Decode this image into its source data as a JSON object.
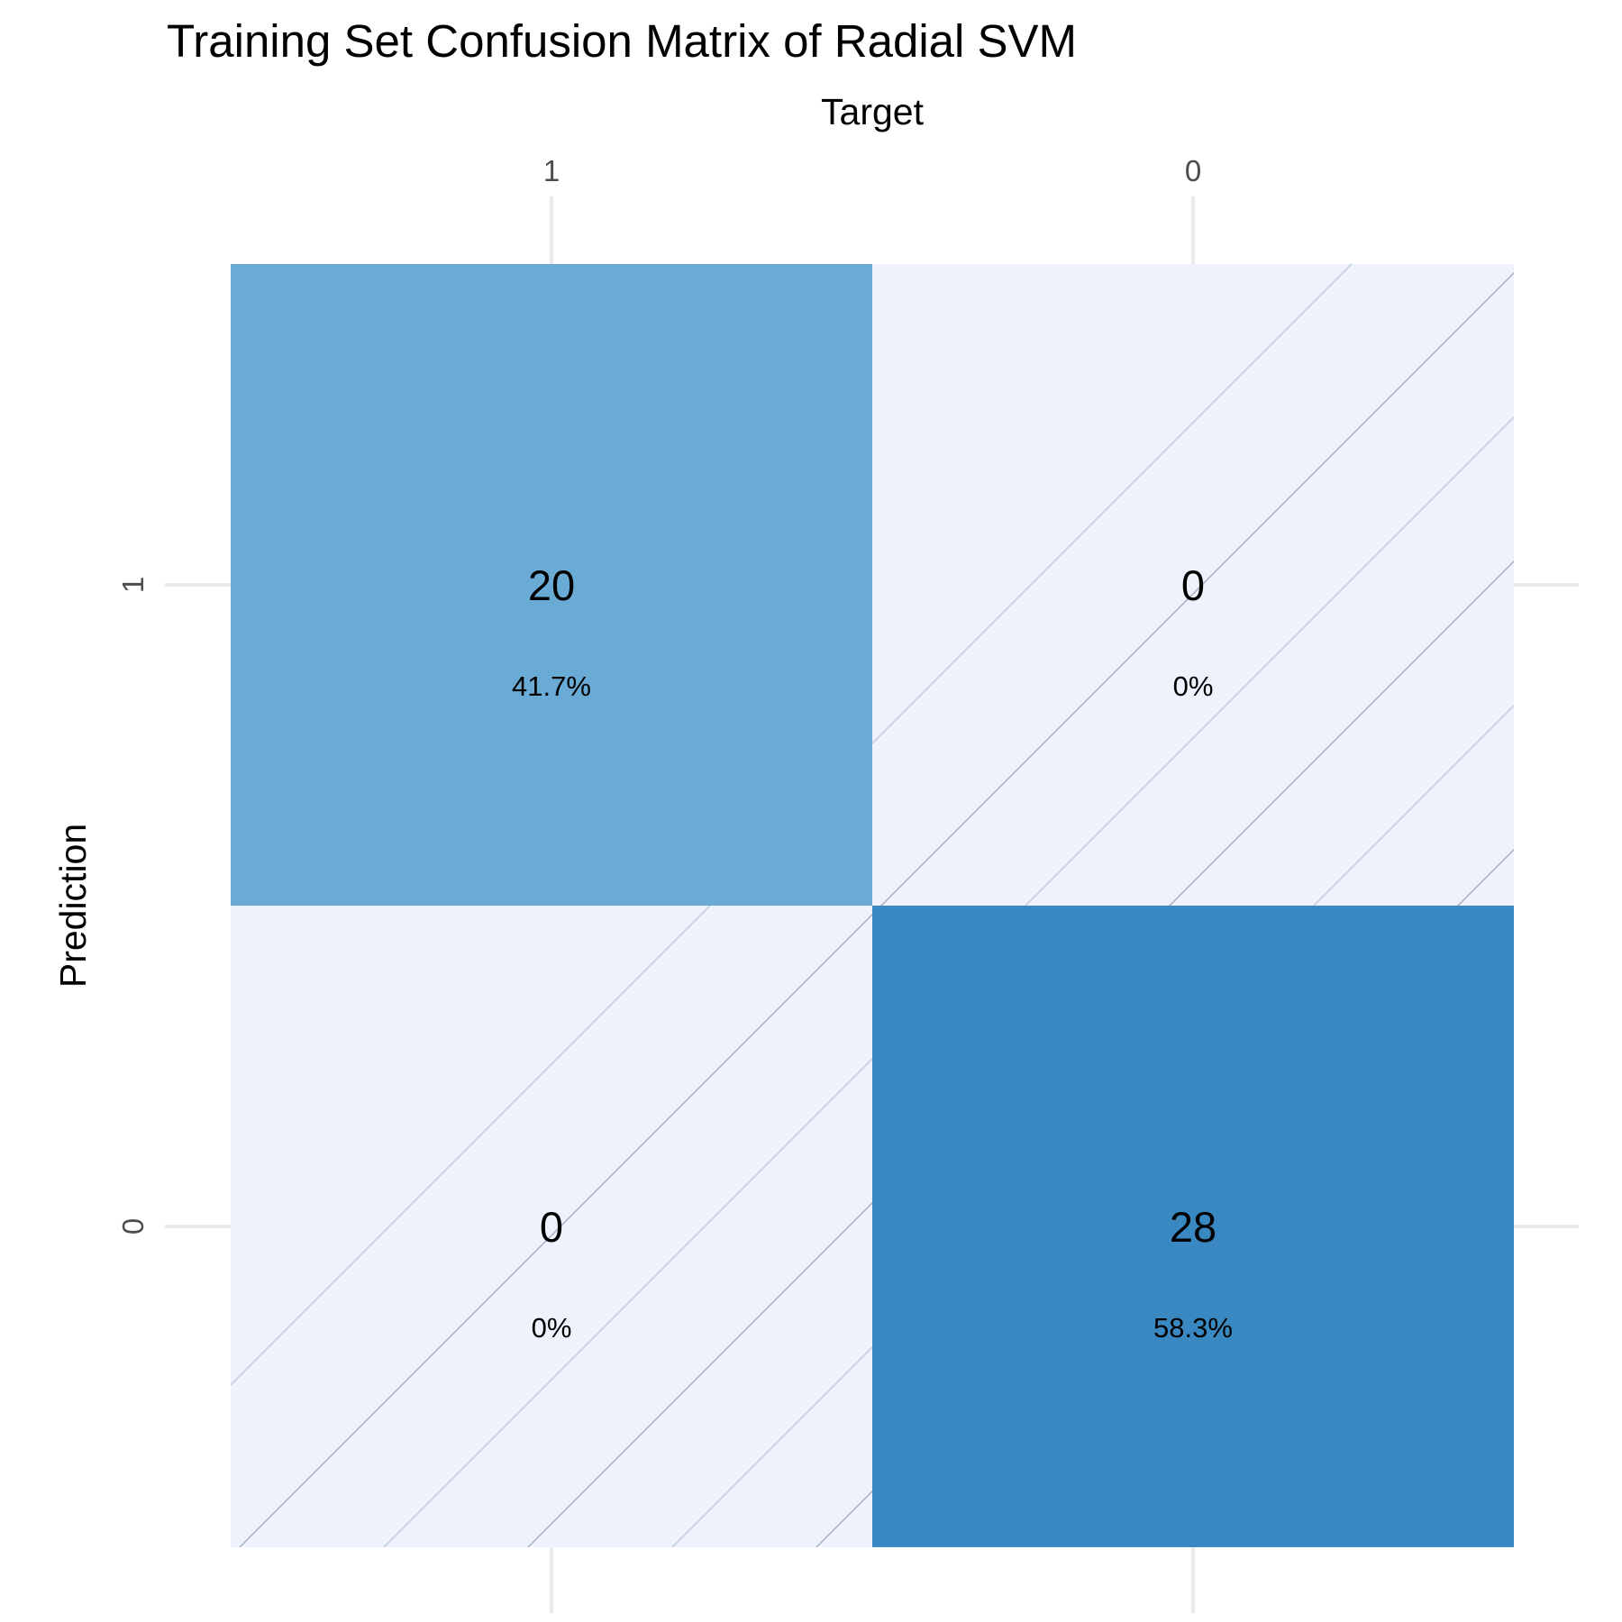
{
  "chart_data": {
    "type": "heatmap",
    "title": "Training Set Confusion Matrix of Radial SVM",
    "xlabel": "Target",
    "ylabel": "Prediction",
    "x_categories": [
      "1",
      "0"
    ],
    "y_categories": [
      "1",
      "0"
    ],
    "cells": [
      {
        "target": "1",
        "prediction": "1",
        "count": "20",
        "percent": "41.7%",
        "color": "#6aabd5"
      },
      {
        "target": "0",
        "prediction": "1",
        "count": "0",
        "percent": "0%",
        "color": "#eef2fc",
        "zero_hatched": true
      },
      {
        "target": "1",
        "prediction": "0",
        "count": "0",
        "percent": "0%",
        "color": "#eef2fc",
        "zero_hatched": true
      },
      {
        "target": "0",
        "prediction": "0",
        "count": "28",
        "percent": "58.3%",
        "color": "#3a88c2"
      }
    ],
    "x_axis_position": "top",
    "grid": true,
    "legend": "none"
  }
}
